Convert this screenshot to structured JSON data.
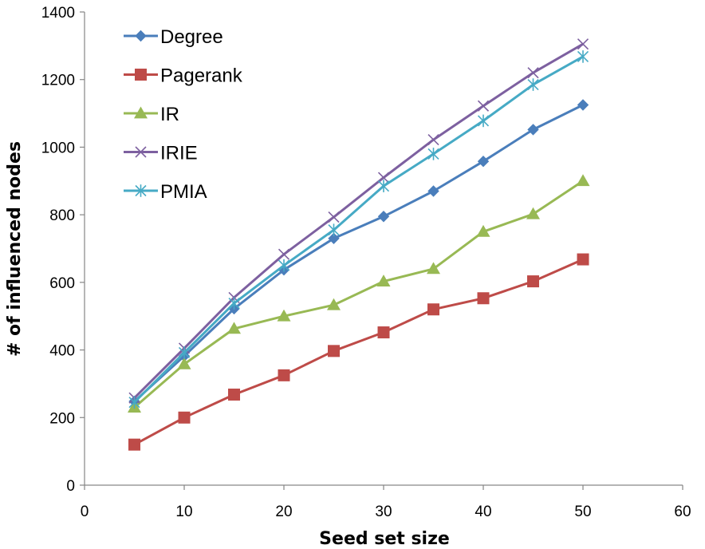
{
  "chart_data": {
    "type": "line",
    "title": "",
    "xlabel": "Seed set size",
    "ylabel": "# of influenced nodes",
    "xlim": [
      0,
      60
    ],
    "ylim": [
      0,
      1400
    ],
    "xticks": [
      0,
      10,
      20,
      30,
      40,
      50,
      60
    ],
    "yticks": [
      0,
      200,
      400,
      600,
      800,
      1000,
      1200,
      1400
    ],
    "grid": false,
    "legend_position": "top-left",
    "x": [
      5,
      10,
      15,
      20,
      25,
      30,
      35,
      40,
      45,
      50
    ],
    "series": [
      {
        "name": "Degree",
        "color": "#4a7ebb",
        "marker": "diamond",
        "values": [
          248,
          382,
          522,
          637,
          730,
          795,
          870,
          958,
          1052,
          1125
        ]
      },
      {
        "name": "Pagerank",
        "color": "#be4b48",
        "marker": "square",
        "values": [
          120,
          200,
          268,
          325,
          397,
          452,
          520,
          553,
          603,
          668
        ]
      },
      {
        "name": "IR",
        "color": "#98b954",
        "marker": "triangle",
        "values": [
          230,
          358,
          463,
          500,
          533,
          603,
          640,
          750,
          802,
          900
        ]
      },
      {
        "name": "IRIE",
        "color": "#7d60a0",
        "marker": "x",
        "values": [
          258,
          405,
          555,
          683,
          793,
          910,
          1022,
          1122,
          1220,
          1305
        ]
      },
      {
        "name": "PMIA",
        "color": "#46aac5",
        "marker": "asterisk",
        "values": [
          245,
          392,
          538,
          650,
          755,
          885,
          980,
          1078,
          1185,
          1268
        ]
      }
    ]
  }
}
